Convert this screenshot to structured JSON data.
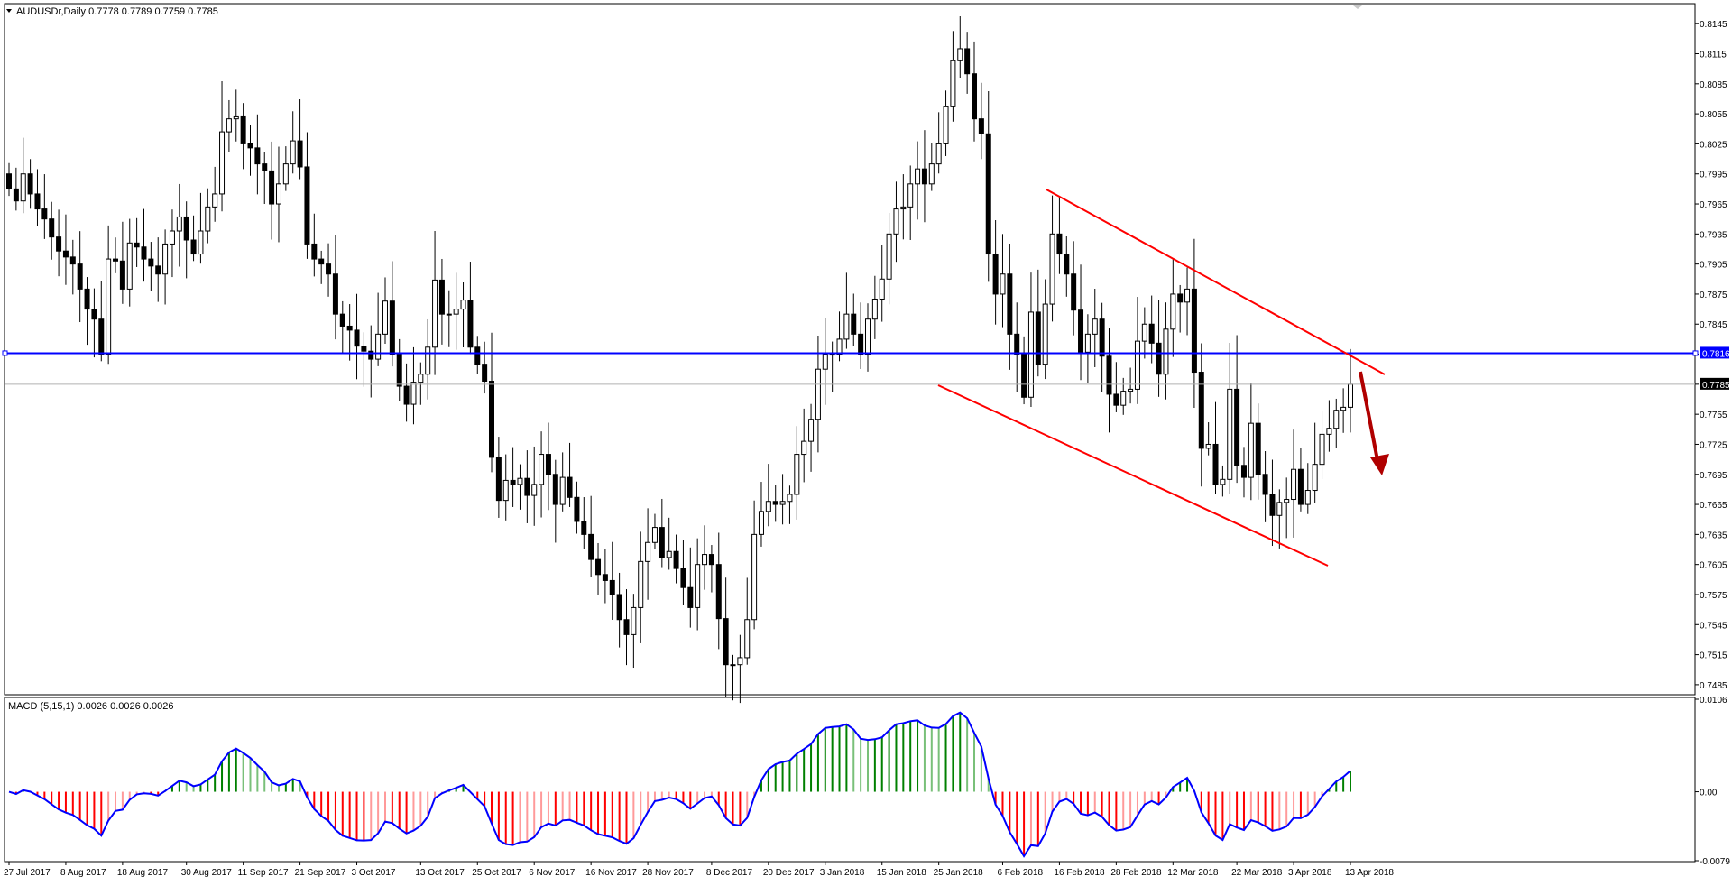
{
  "window": {
    "symbol_header": "AUDUSDr,Daily  0.7778 0.7789 0.7759 0.7785",
    "indicator_header": "MACD (5,15,1) 0.0026 0.0026 0.0026",
    "collapse_icon": "triangle-down-icon"
  },
  "colors": {
    "bull_body": "#ffffff",
    "bear_body": "#000000",
    "wick": "#000000",
    "h_line": "#0000ff",
    "channel": "#ff0000",
    "arrow": "#b00000",
    "macd_line": "#0000ff",
    "hist_pos_rising": "#008000",
    "hist_pos_falling": "#79c079",
    "hist_neg_falling": "#ff0000",
    "hist_neg_rising": "#ff9a9a"
  },
  "price_axis": {
    "labels": [
      "0.8145",
      "0.8115",
      "0.8085",
      "0.8055",
      "0.8025",
      "0.7995",
      "0.7965",
      "0.7935",
      "0.7905",
      "0.7875",
      "0.7845",
      "0.7815",
      "0.7785",
      "0.7755",
      "0.7725",
      "0.7695",
      "0.7665",
      "0.7635",
      "0.7605",
      "0.7575",
      "0.7545",
      "0.7515",
      "0.7485"
    ],
    "hline_label": "0.7816",
    "current_label": "0.7785"
  },
  "macd_axis": {
    "labels": [
      "0.0106",
      "0.00",
      "-0.0079"
    ]
  },
  "time_axis": {
    "labels": [
      "27 Jul 2017",
      "8 Aug 2017",
      "18 Aug 2017",
      "30 Aug 2017",
      "11 Sep 2017",
      "21 Sep 2017",
      "3 Oct 2017",
      "13 Oct 2017",
      "25 Oct 2017",
      "6 Nov 2017",
      "16 Nov 2017",
      "28 Nov 2017",
      "8 Dec 2017",
      "20 Dec 2017",
      "3 Jan 2018",
      "15 Jan 2018",
      "25 Jan 2018",
      "6 Feb 2018",
      "16 Feb 2018",
      "28 Feb 2018",
      "12 Mar 2018",
      "22 Mar 2018",
      "3 Apr 2018",
      "13 Apr 2018"
    ]
  },
  "chart_data": [
    {
      "type": "candlestick",
      "symbol": "AUDUSDr",
      "timeframe": "Daily",
      "ylim": [
        0.7475,
        0.8165
      ],
      "close_series": [
        0.798,
        0.7968,
        0.7995,
        0.7975,
        0.796,
        0.795,
        0.7932,
        0.7918,
        0.7912,
        0.7905,
        0.788,
        0.786,
        0.785,
        0.7815,
        0.791,
        0.7908,
        0.788,
        0.7926,
        0.7922,
        0.791,
        0.7903,
        0.7895,
        0.7925,
        0.7938,
        0.7952,
        0.7929,
        0.7915,
        0.7938,
        0.7962,
        0.7975,
        0.8037,
        0.805,
        0.8052,
        0.8025,
        0.8021,
        0.8005,
        0.7998,
        0.7965,
        0.7985,
        0.8005,
        0.8028,
        0.8002,
        0.7925,
        0.791,
        0.7905,
        0.7895,
        0.7855,
        0.7843,
        0.7839,
        0.7823,
        0.7818,
        0.781,
        0.7835,
        0.7868,
        0.7815,
        0.7783,
        0.7765,
        0.7787,
        0.7795,
        0.7822,
        0.7889,
        0.7855,
        0.7855,
        0.786,
        0.7869,
        0.7822,
        0.7805,
        0.7788,
        0.7712,
        0.7669,
        0.7689,
        0.7685,
        0.7691,
        0.7674,
        0.7685,
        0.7715,
        0.7695,
        0.7665,
        0.7692,
        0.7672,
        0.7648,
        0.7635,
        0.761,
        0.7595,
        0.7589,
        0.7575,
        0.755,
        0.7535,
        0.7562,
        0.7608,
        0.7627,
        0.7642,
        0.7612,
        0.7618,
        0.7601,
        0.7582,
        0.7562,
        0.7605,
        0.7615,
        0.7605,
        0.7551,
        0.7505,
        0.7505,
        0.7512,
        0.755,
        0.7635,
        0.7658,
        0.7668,
        0.7665,
        0.7668,
        0.7675,
        0.7715,
        0.7728,
        0.775,
        0.78,
        0.7815,
        0.7815,
        0.783,
        0.7855,
        0.7835,
        0.7815,
        0.785,
        0.787,
        0.789,
        0.7935,
        0.796,
        0.7962,
        0.7985,
        0.8,
        0.7985,
        0.8005,
        0.8025,
        0.8062,
        0.8108,
        0.812,
        0.8095,
        0.805,
        0.8035,
        0.7915,
        0.7875,
        0.7895,
        0.7835,
        0.7815,
        0.7772,
        0.7857,
        0.7805,
        0.7865,
        0.7935,
        0.7915,
        0.7895,
        0.7859,
        0.7817,
        0.7835,
        0.785,
        0.7813,
        0.7775,
        0.7764,
        0.7778,
        0.778,
        0.7828,
        0.7845,
        0.7826,
        0.7795,
        0.784,
        0.7875,
        0.7867,
        0.788,
        0.7797,
        0.7721,
        0.7725,
        0.7685,
        0.769,
        0.778,
        0.7704,
        0.7692,
        0.7746,
        0.7695,
        0.7675,
        0.7654,
        0.7667,
        0.767,
        0.77,
        0.7665,
        0.7679,
        0.7705,
        0.7735,
        0.7741,
        0.7759,
        0.7762,
        0.7785
      ],
      "horizontal_level": 0.7816,
      "current_price": 0.7785
    },
    {
      "type": "histogram+line",
      "name": "MACD (5,15,1)",
      "ylim": [
        -0.0079,
        0.0106
      ],
      "zero": 0.0,
      "last_value": 0.0026
    }
  ]
}
